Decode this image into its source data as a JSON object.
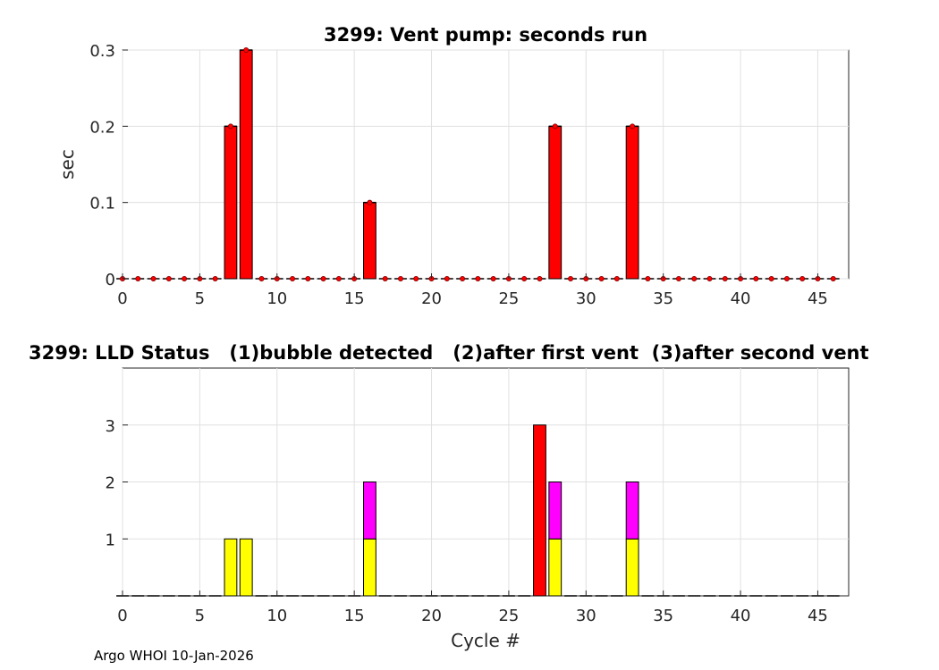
{
  "footer_text": "Argo WHOI 10-Jan-2026",
  "colors": {
    "vent_bar": "#ff0000",
    "bubble_detected": "#ffff00",
    "after_first_vent": "#ff00ff",
    "after_second_vent": "#ff0000",
    "grid": "#e0e0e0",
    "axis": "#262626"
  },
  "chart_data": [
    {
      "type": "bar",
      "title": "3299: Vent pump: seconds run",
      "xlabel": "",
      "ylabel": "sec",
      "xlim": [
        0,
        47
      ],
      "ylim": [
        0,
        0.3
      ],
      "xticks": [
        0,
        5,
        10,
        15,
        20,
        25,
        30,
        35,
        40,
        45
      ],
      "yticks": [
        0,
        0.1,
        0.2,
        0.3
      ],
      "grid": true,
      "markers": "red dot at each cycle value",
      "x": [
        0,
        1,
        2,
        3,
        4,
        5,
        6,
        7,
        8,
        9,
        10,
        11,
        12,
        13,
        14,
        15,
        16,
        17,
        18,
        19,
        20,
        21,
        22,
        23,
        24,
        25,
        26,
        27,
        28,
        29,
        30,
        31,
        32,
        33,
        34,
        35,
        36,
        37,
        38,
        39,
        40,
        41,
        42,
        43,
        44,
        45,
        46
      ],
      "values": [
        0,
        0,
        0,
        0,
        0,
        0,
        0,
        0.2,
        0.3,
        0,
        0,
        0,
        0,
        0,
        0,
        0,
        0.1,
        0,
        0,
        0,
        0,
        0,
        0,
        0,
        0,
        0,
        0,
        0,
        0.2,
        0,
        0,
        0,
        0,
        0.2,
        0,
        0,
        0,
        0,
        0,
        0,
        0,
        0,
        0,
        0,
        0,
        0,
        0
      ]
    },
    {
      "type": "bar",
      "stacked": true,
      "title": "3299: LLD Status   (1)bubble detected   (2)after first vent  (3)after second vent",
      "xlabel": "Cycle #",
      "ylabel": "",
      "xlim": [
        0,
        47
      ],
      "ylim": [
        0,
        4
      ],
      "xticks": [
        0,
        5,
        10,
        15,
        20,
        25,
        30,
        35,
        40,
        45
      ],
      "yticks": [
        1,
        2,
        3
      ],
      "grid": true,
      "x": [
        0,
        1,
        2,
        3,
        4,
        5,
        6,
        7,
        8,
        9,
        10,
        11,
        12,
        13,
        14,
        15,
        16,
        17,
        18,
        19,
        20,
        21,
        22,
        23,
        24,
        25,
        26,
        27,
        28,
        29,
        30,
        31,
        32,
        33,
        34,
        35,
        36,
        37,
        38,
        39,
        40,
        41,
        42,
        43,
        44,
        45,
        46
      ],
      "values": [
        0,
        0,
        0,
        0,
        0,
        0,
        0,
        1,
        1,
        0,
        0,
        0,
        0,
        0,
        0,
        0,
        2,
        0,
        0,
        0,
        0,
        0,
        0,
        0,
        0,
        0,
        0,
        3,
        2,
        0,
        0,
        0,
        0,
        2,
        0,
        0,
        0,
        0,
        0,
        0,
        0,
        0,
        0,
        0,
        0,
        0,
        0
      ],
      "status_colors": {
        "1": "#ffff00",
        "2": "#ff00ff",
        "3": "#ff0000"
      }
    }
  ]
}
